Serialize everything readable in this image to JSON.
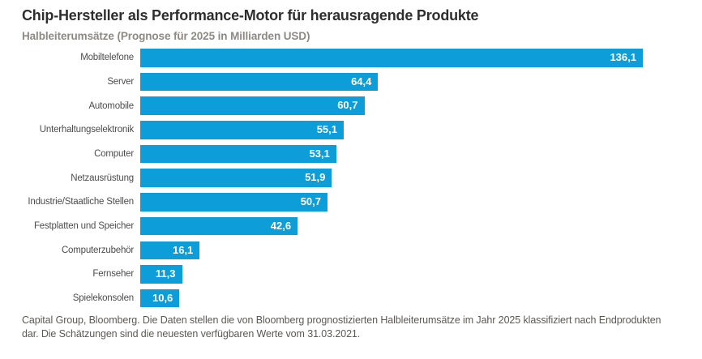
{
  "header": {
    "title": "Chip-Hersteller als Performance-Motor für herausragende Produkte",
    "subtitle": "Halbleiterumsätze (Prognose für 2025 in Milliarden USD)"
  },
  "chart_data": {
    "type": "bar",
    "orientation": "horizontal",
    "title": "Chip-Hersteller als Performance-Motor für herausragende Produkte",
    "subtitle": "Halbleiterumsätze (Prognose für 2025 in Milliarden USD)",
    "categories": [
      "Mobiltelefone",
      "Server",
      "Automobile",
      "Unterhaltungselektronik",
      "Computer",
      "Netzausrüstung",
      "Industrie/Staatliche Stellen",
      "Festplatten und Speicher",
      "Computerzubehör",
      "Fernseher",
      "Spielekonsolen"
    ],
    "values": [
      136.1,
      64.4,
      60.7,
      55.1,
      53.1,
      51.9,
      50.7,
      42.6,
      16.1,
      11.3,
      10.6
    ],
    "value_labels": [
      "136,1",
      "64,4",
      "60,7",
      "55,1",
      "53,1",
      "51,9",
      "50,7",
      "42,6",
      "16,1",
      "11,3",
      "10,6"
    ],
    "xlim": [
      0,
      136.1
    ],
    "bar_color": "#0d9dd9",
    "value_label_color": "#ffffff",
    "grid": false,
    "legend": false,
    "value_label_position": "inside-end"
  },
  "footer": {
    "source_note": "Capital Group, Bloomberg. Die Daten stellen die von Bloomberg prognostizierten Halbleiterumsätze im Jahr 2025 klassifiziert nach Endprodukten dar. Die Schätzungen sind die neuesten verfügbaren Werte vom 31.03.2021."
  }
}
